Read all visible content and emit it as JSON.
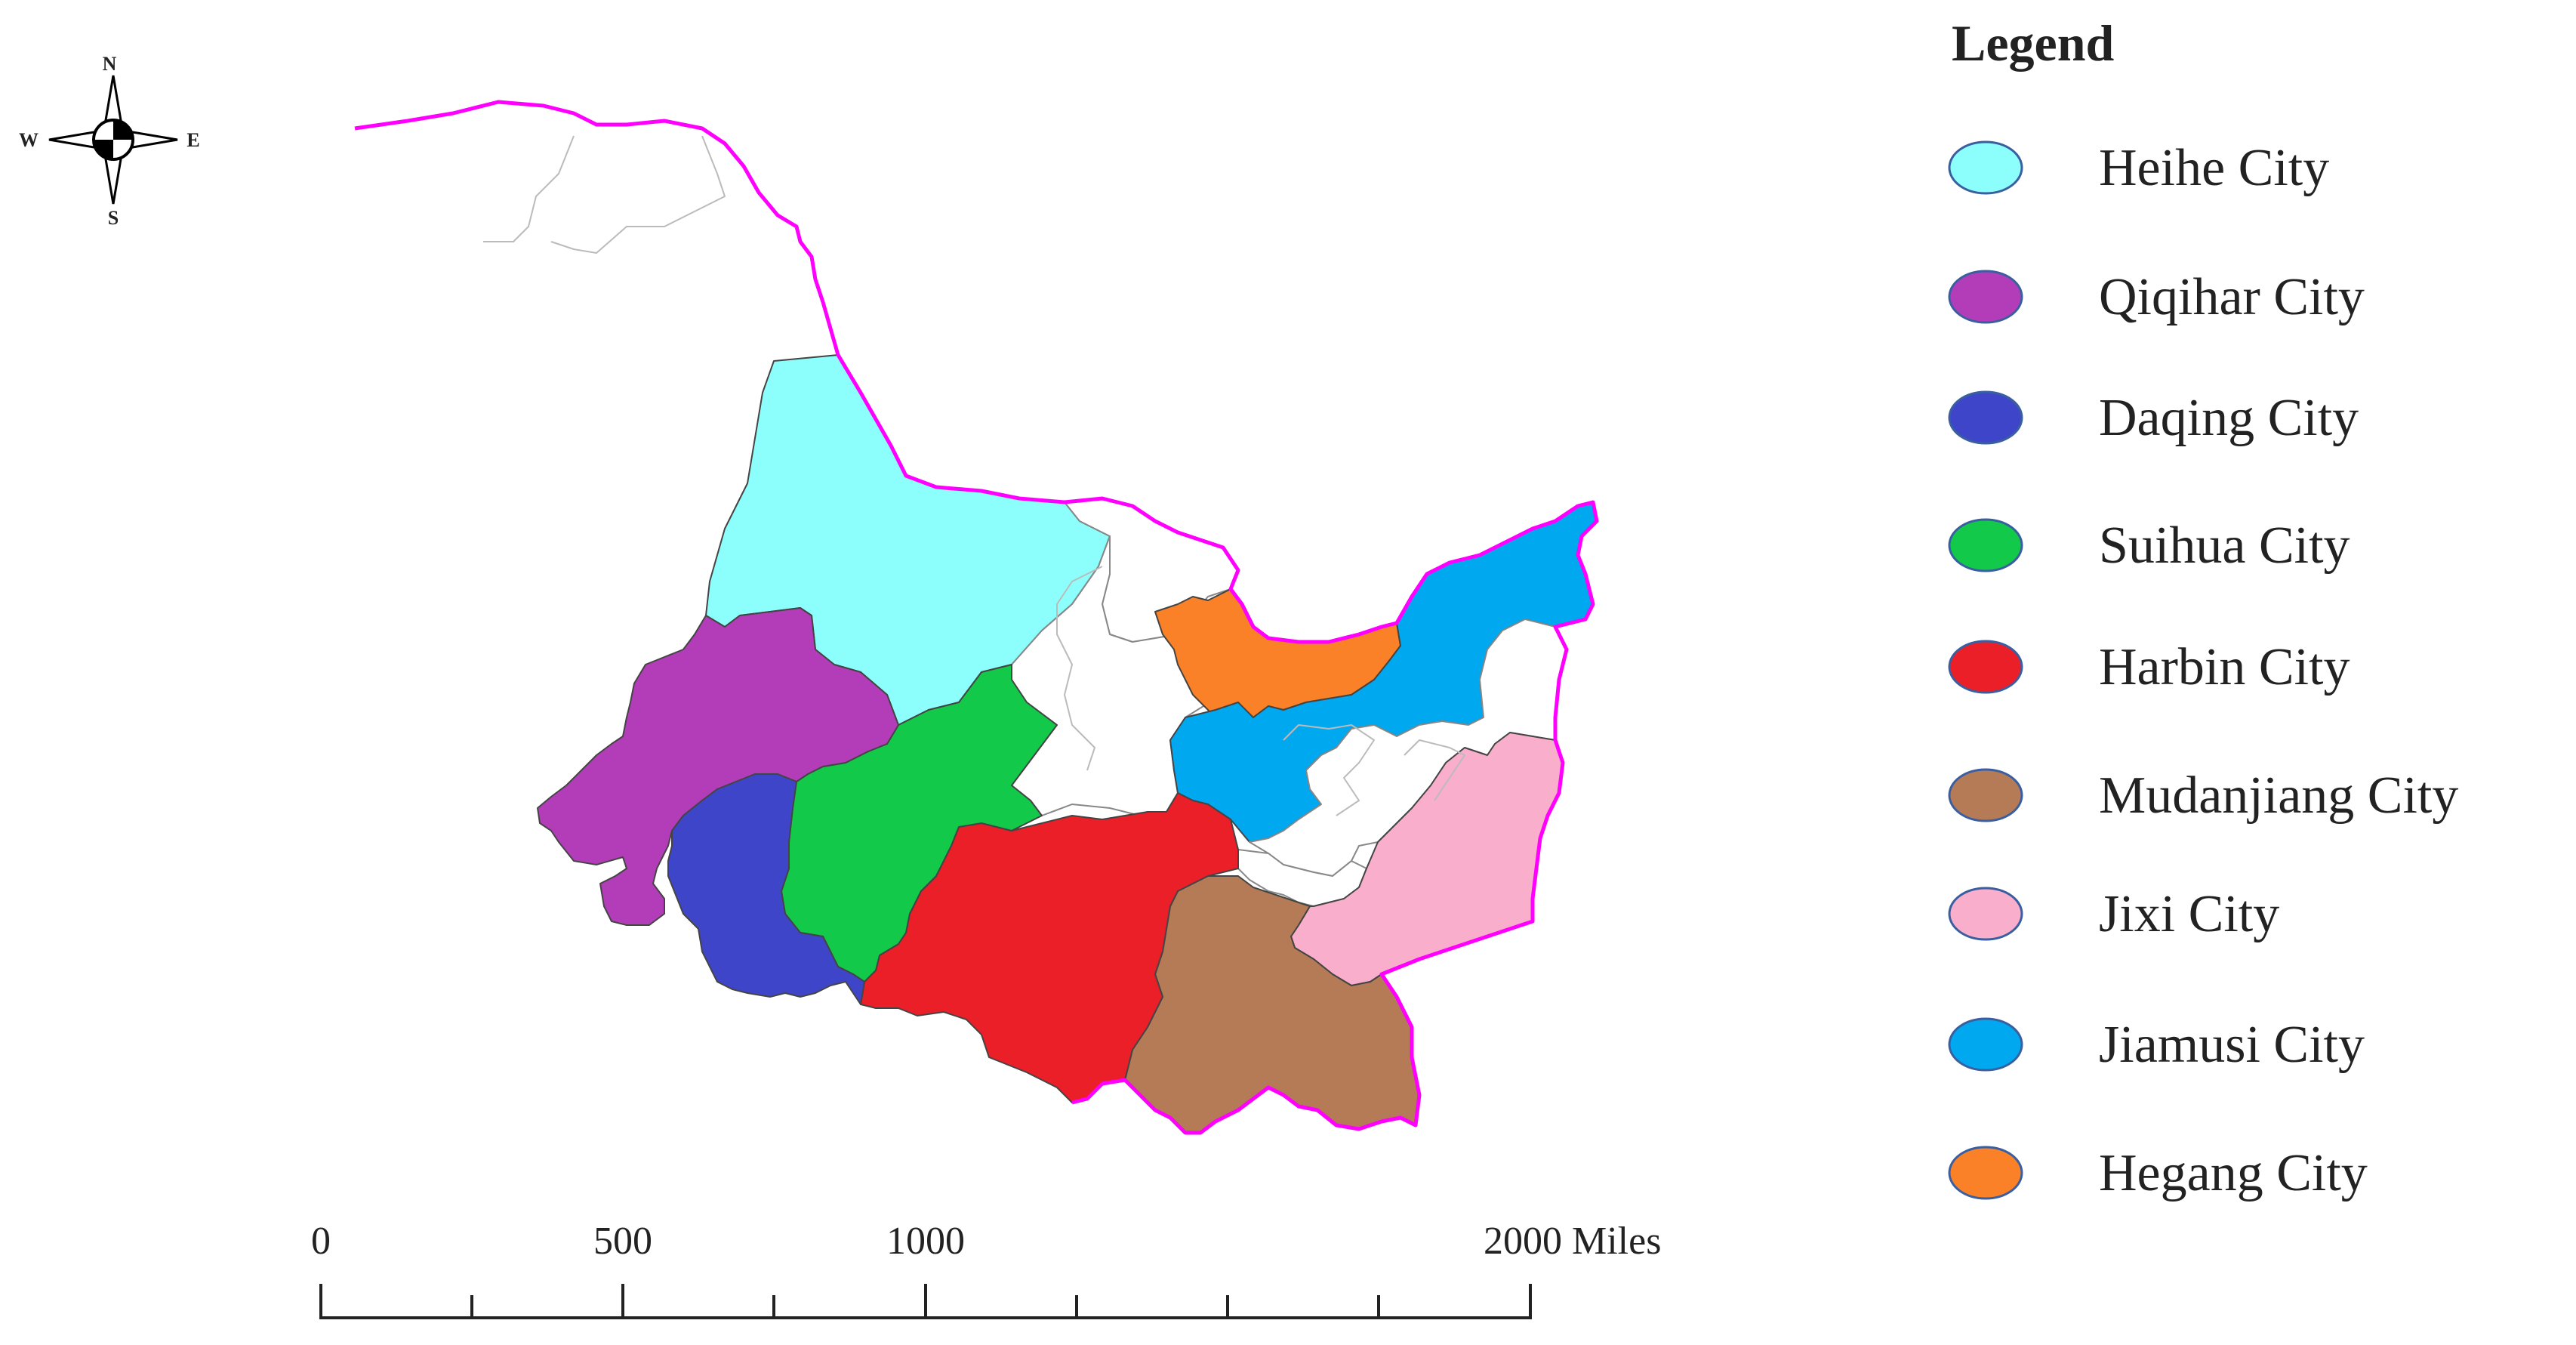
{
  "legend": {
    "title": "Legend",
    "items": [
      {
        "label": "Heihe City",
        "color": "#8CFFFC"
      },
      {
        "label": "Qiqihar City",
        "color": "#B33DB8"
      },
      {
        "label": "Daqing City",
        "color": "#3F45C9"
      },
      {
        "label": "Suihua City",
        "color": "#13C94A"
      },
      {
        "label": "Harbin City",
        "color": "#EA1F28"
      },
      {
        "label": "Mudanjiang City",
        "color": "#B57B56"
      },
      {
        "label": "Jixi City",
        "color": "#F9AECB"
      },
      {
        "label": "Jiamusi City",
        "color": "#00A8F0"
      },
      {
        "label": "Hegang City",
        "color": "#FA8127"
      }
    ]
  },
  "scale_bar": {
    "labels": [
      "0",
      "500",
      "1000",
      "2000 Miles"
    ]
  },
  "compass": {
    "north": "N",
    "south": "S",
    "east": "E",
    "west": "W"
  },
  "map": {
    "province_outline_color": "#FF00FF",
    "uncolored_region_color": "#FFFFFF",
    "inner_border_color": "#BBBBBB"
  }
}
